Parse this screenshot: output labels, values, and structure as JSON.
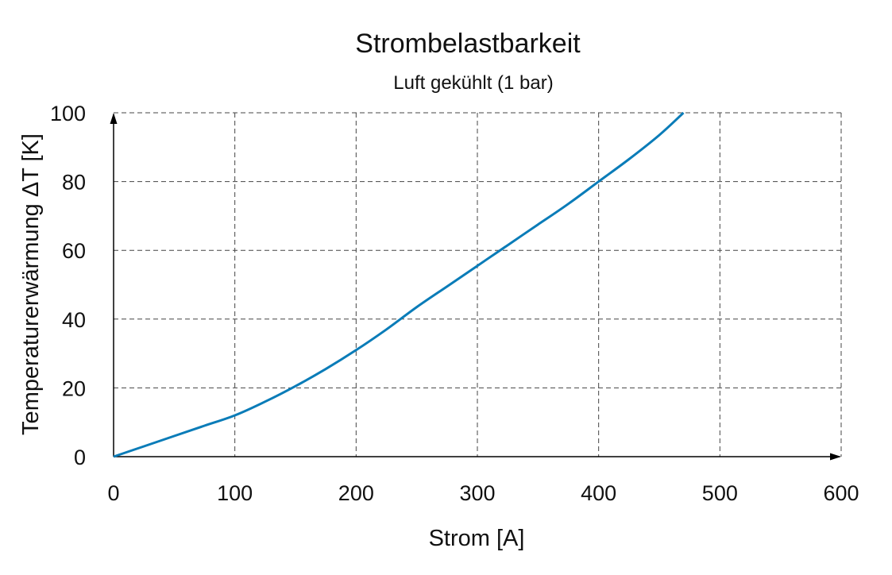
{
  "chart_data": {
    "type": "line",
    "title": "Strombelastbarkeit",
    "subtitle": "Luft gekühlt (1 bar)",
    "xlabel": "Strom [A]",
    "ylabel": "Temperaturerwärmung ΔT [K]",
    "xlim": [
      0,
      600
    ],
    "ylim": [
      0,
      100
    ],
    "xticks": [
      "0",
      "100",
      "200",
      "300",
      "400",
      "500",
      "600"
    ],
    "yticks": [
      "0",
      "20",
      "40",
      "60",
      "80",
      "100"
    ],
    "grid": true,
    "series": [
      {
        "color": "#0a7cb8",
        "x": [
          0,
          25,
          50,
          75,
          100,
          125,
          150,
          175,
          200,
          225,
          250,
          275,
          300,
          325,
          350,
          375,
          400,
          425,
          450,
          470
        ],
        "y": [
          0,
          3,
          6,
          9,
          12,
          16,
          20.5,
          25.5,
          31,
          37,
          43.5,
          49.5,
          55.5,
          61.5,
          67.5,
          73.5,
          80,
          86.5,
          93.5,
          100
        ]
      }
    ]
  }
}
